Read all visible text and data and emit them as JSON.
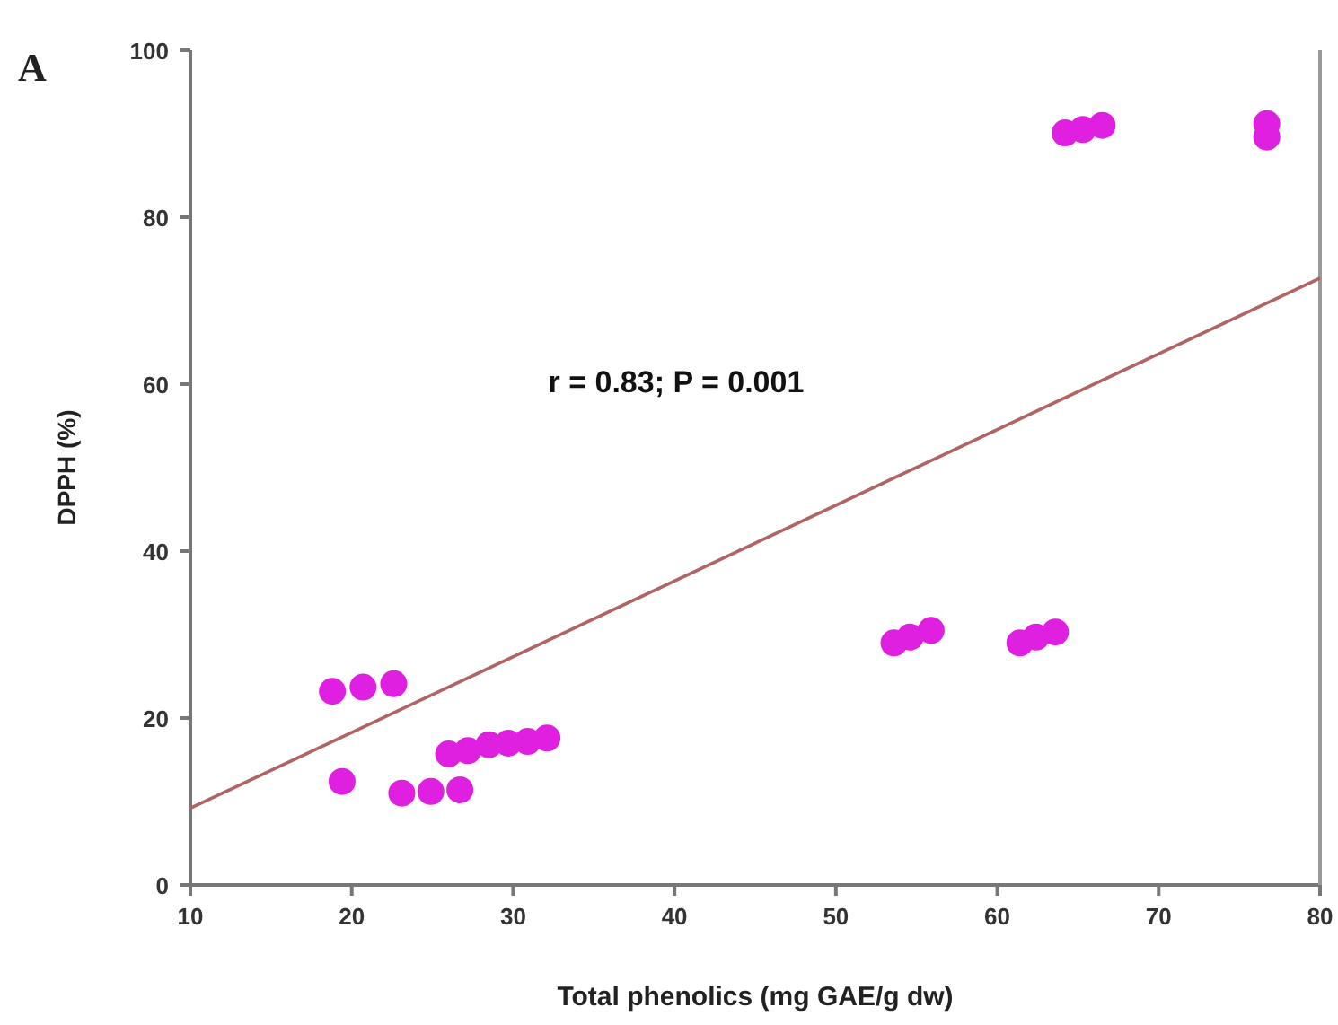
{
  "chart_data": {
    "type": "scatter",
    "xlabel": "Total phenolics (mg GAE/g dw)",
    "ylabel": "DPPH (%)",
    "annotations": [
      "A",
      "r = 0.83; P = 0.001"
    ],
    "xlim": [
      10,
      80
    ],
    "xticks": [
      10,
      20,
      30,
      40,
      50,
      60,
      70,
      80
    ],
    "ylim": [
      0,
      100
    ],
    "yticks": [
      0,
      20,
      40,
      60,
      80,
      100
    ],
    "grid": false,
    "series": [
      {
        "color": "#e020e0",
        "marker": "circle",
        "x": [
          18.8,
          20.7,
          22.6,
          19.4,
          23.1,
          24.9,
          26.7,
          26.0,
          27.2,
          28.5,
          29.7,
          30.9,
          32.1,
          53.6,
          54.6,
          55.9,
          61.4,
          62.4,
          63.6,
          64.2,
          65.3,
          66.5,
          76.7,
          76.7
        ],
        "values": [
          23.2,
          23.7,
          24.1,
          12.4,
          11.0,
          11.2,
          11.4,
          15.7,
          16.1,
          16.8,
          17.0,
          17.2,
          17.6,
          29.0,
          29.7,
          30.5,
          29.0,
          29.7,
          30.3,
          90.1,
          90.5,
          91.0,
          91.2,
          89.6
        ]
      },
      {
        "type": "line",
        "color": "#b06464",
        "marker": "none",
        "line_style": "solid",
        "x": [
          10,
          80
        ],
        "values": [
          9.2,
          72.7
        ]
      }
    ]
  }
}
